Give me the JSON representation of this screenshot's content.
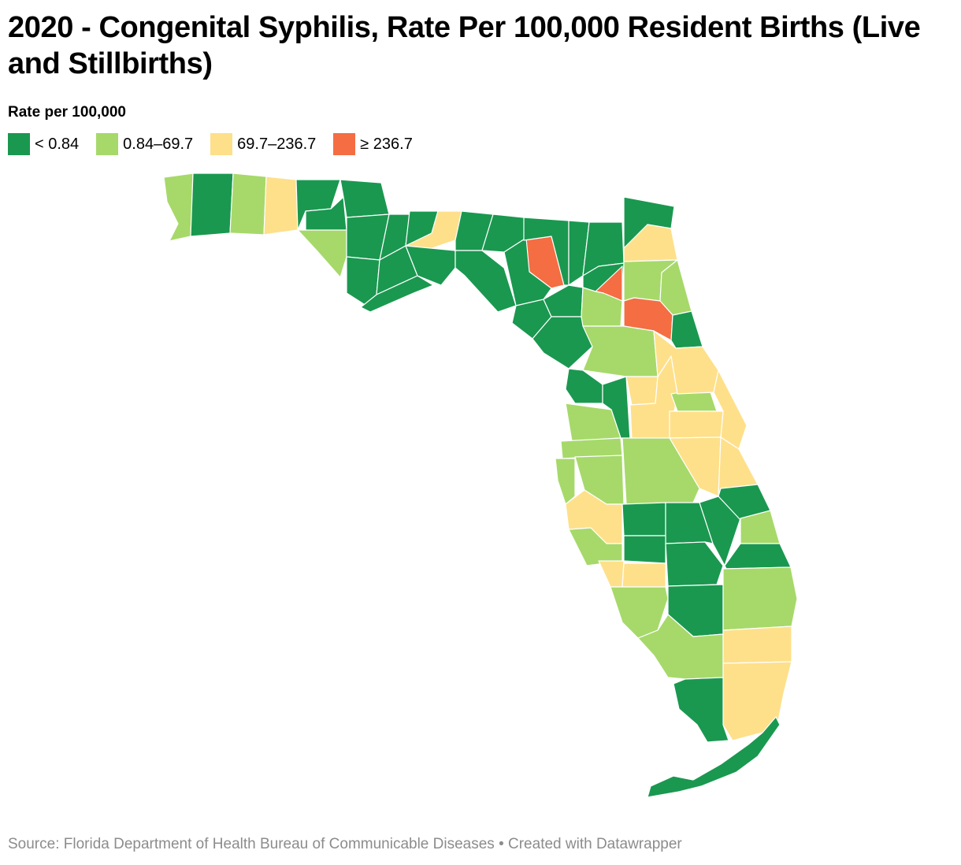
{
  "title": "2020 - Congenital Syphilis, Rate Per 100,000 Resident Births (Live and Stillbirths)",
  "legend": {
    "title": "Rate per 100,000",
    "items": [
      {
        "label": "< 0.84",
        "color": "#1a9850"
      },
      {
        "label": "0.84–69.7",
        "color": "#a6d96a"
      },
      {
        "label": "69.7–236.7",
        "color": "#fee08b"
      },
      {
        "label": "≥ 236.7",
        "color": "#f46d43"
      }
    ]
  },
  "footer": {
    "source": "Source: Florida Department of Health Bureau of Communicable Diseases • Created with Datawrapper"
  }
}
